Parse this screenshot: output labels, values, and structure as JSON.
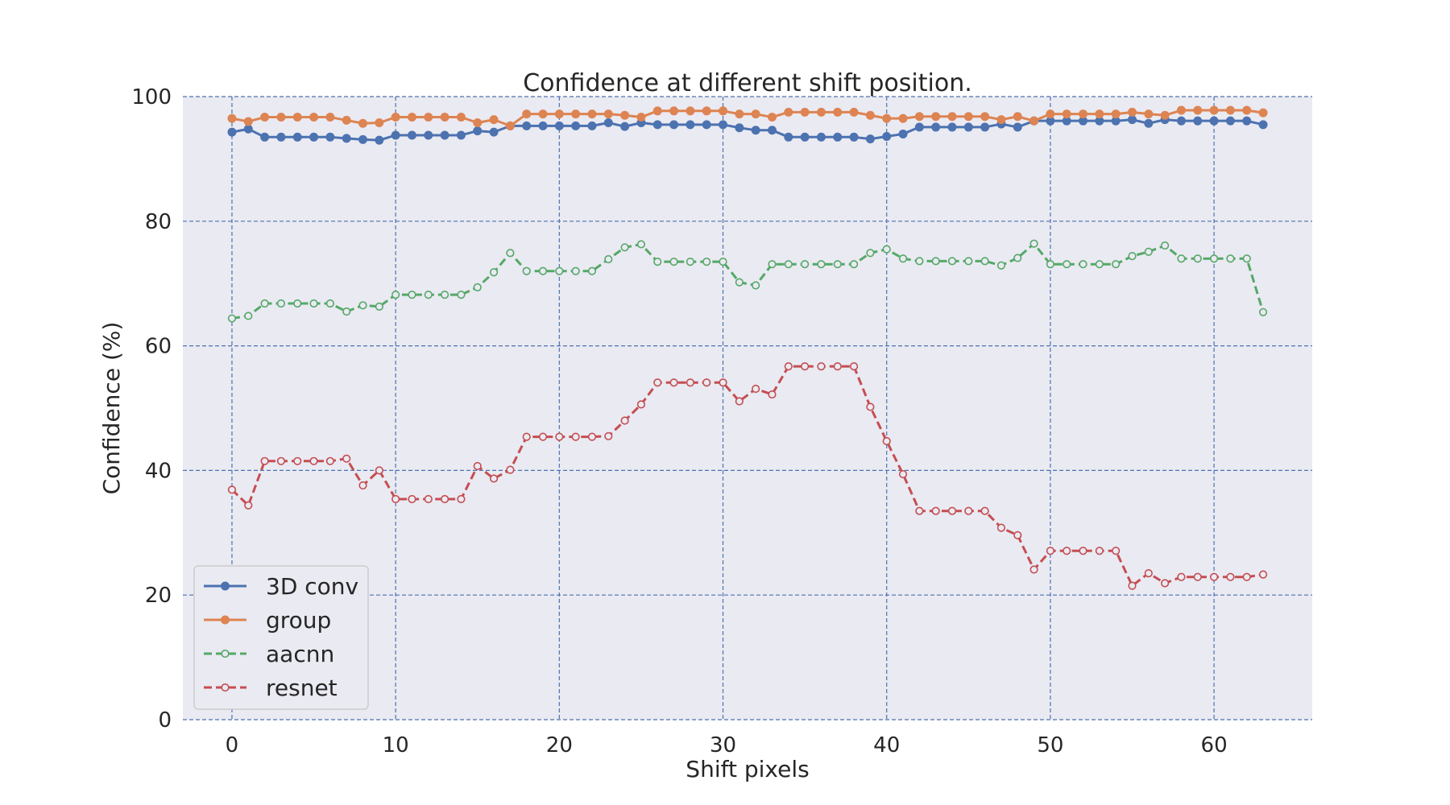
{
  "chart_data": {
    "type": "line",
    "title": "Confidence at different shift position.",
    "xlabel": "Shift pixels",
    "ylabel": "Confidence (%)",
    "xlim": [
      -3,
      66
    ],
    "ylim": [
      0,
      100
    ],
    "xticks": [
      0,
      10,
      20,
      30,
      40,
      50,
      60
    ],
    "yticks": [
      0,
      20,
      40,
      60,
      80,
      100
    ],
    "grid": true,
    "legend_position": "lower-left",
    "background": "#eaeaf2",
    "grid_color": "#4c72b0",
    "x": [
      0,
      1,
      2,
      3,
      4,
      5,
      6,
      7,
      8,
      9,
      10,
      11,
      12,
      13,
      14,
      15,
      16,
      17,
      18,
      19,
      20,
      21,
      22,
      23,
      24,
      25,
      26,
      27,
      28,
      29,
      30,
      31,
      32,
      33,
      34,
      35,
      36,
      37,
      38,
      39,
      40,
      41,
      42,
      43,
      44,
      45,
      46,
      47,
      48,
      49,
      50,
      51,
      52,
      53,
      54,
      55,
      56,
      57,
      58,
      59,
      60,
      61,
      62,
      63
    ],
    "series": [
      {
        "name": "3D conv",
        "color": "#4c72b0",
        "linestyle": "solid",
        "marker": "filled-circle",
        "values": [
          94.3,
          94.8,
          93.5,
          93.5,
          93.5,
          93.5,
          93.5,
          93.3,
          93.1,
          93.0,
          93.8,
          93.8,
          93.8,
          93.8,
          93.8,
          94.5,
          94.3,
          95.3,
          95.3,
          95.3,
          95.3,
          95.3,
          95.3,
          95.8,
          95.2,
          95.8,
          95.5,
          95.5,
          95.5,
          95.5,
          95.5,
          95.0,
          94.6,
          94.6,
          93.5,
          93.5,
          93.5,
          93.5,
          93.5,
          93.2,
          93.6,
          94.0,
          95.1,
          95.1,
          95.1,
          95.1,
          95.1,
          95.6,
          95.1,
          96.1,
          96.1,
          96.1,
          96.1,
          96.1,
          96.1,
          96.3,
          95.7,
          96.3,
          96.1,
          96.1,
          96.1,
          96.1,
          96.1,
          95.5
        ]
      },
      {
        "name": "group",
        "color": "#dd8452",
        "linestyle": "solid",
        "marker": "filled-circle",
        "values": [
          96.5,
          96.0,
          96.7,
          96.7,
          96.7,
          96.7,
          96.7,
          96.2,
          95.7,
          95.8,
          96.7,
          96.7,
          96.7,
          96.7,
          96.7,
          95.8,
          96.3,
          95.3,
          97.2,
          97.2,
          97.2,
          97.2,
          97.2,
          97.2,
          97.0,
          96.7,
          97.7,
          97.7,
          97.7,
          97.7,
          97.7,
          97.2,
          97.2,
          96.7,
          97.5,
          97.5,
          97.5,
          97.5,
          97.5,
          97.0,
          96.5,
          96.5,
          96.8,
          96.8,
          96.8,
          96.8,
          96.8,
          96.3,
          96.8,
          96.1,
          97.2,
          97.2,
          97.2,
          97.2,
          97.2,
          97.5,
          97.2,
          97.0,
          97.8,
          97.8,
          97.8,
          97.8,
          97.8,
          97.4
        ]
      },
      {
        "name": "aacnn",
        "color": "#55a868",
        "linestyle": "dashed",
        "marker": "open-circle",
        "values": [
          64.4,
          64.8,
          66.8,
          66.8,
          66.8,
          66.8,
          66.8,
          65.5,
          66.5,
          66.3,
          68.2,
          68.2,
          68.2,
          68.2,
          68.2,
          69.4,
          71.8,
          74.9,
          72.0,
          72.0,
          72.0,
          72.0,
          72.0,
          73.9,
          75.8,
          76.3,
          73.5,
          73.5,
          73.5,
          73.5,
          73.5,
          70.2,
          69.7,
          73.1,
          73.1,
          73.1,
          73.1,
          73.1,
          73.1,
          74.9,
          75.5,
          74.0,
          73.6,
          73.6,
          73.6,
          73.6,
          73.6,
          72.9,
          74.1,
          76.4,
          73.1,
          73.1,
          73.1,
          73.1,
          73.1,
          74.4,
          75.1,
          76.1,
          74.0,
          74.0,
          74.0,
          74.0,
          74.0,
          65.4
        ]
      },
      {
        "name": "resnet",
        "color": "#c44e52",
        "linestyle": "dashed",
        "marker": "open-circle",
        "values": [
          36.9,
          34.4,
          41.5,
          41.5,
          41.5,
          41.5,
          41.5,
          41.9,
          37.6,
          40.0,
          35.4,
          35.4,
          35.4,
          35.4,
          35.4,
          40.7,
          38.7,
          40.1,
          45.4,
          45.4,
          45.4,
          45.4,
          45.4,
          45.5,
          48.0,
          50.6,
          54.1,
          54.1,
          54.1,
          54.1,
          54.1,
          51.1,
          53.1,
          52.2,
          56.7,
          56.7,
          56.7,
          56.7,
          56.7,
          50.2,
          44.7,
          39.4,
          33.5,
          33.5,
          33.5,
          33.5,
          33.5,
          30.8,
          29.6,
          24.1,
          27.1,
          27.1,
          27.1,
          27.1,
          27.1,
          21.5,
          23.5,
          21.9,
          22.9,
          22.9,
          22.9,
          22.9,
          22.9,
          23.3
        ]
      }
    ]
  }
}
